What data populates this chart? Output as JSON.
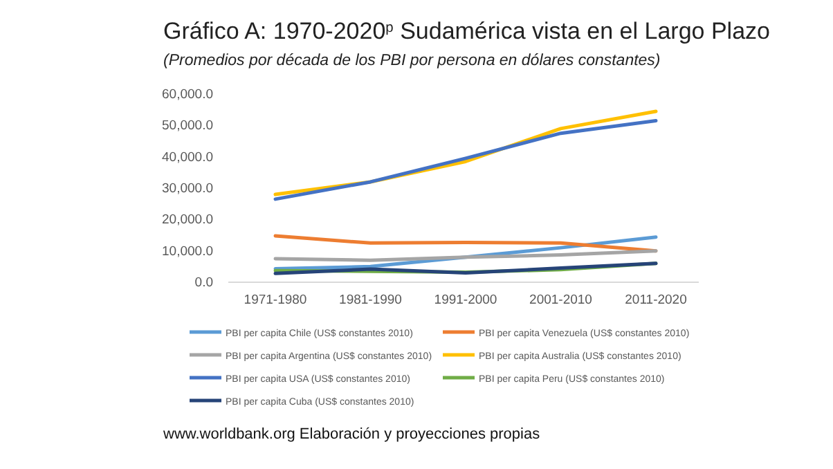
{
  "chart_data": {
    "type": "line",
    "title": "Gráfico A: 1970-2020$^{p}$ Sudamérica vista en el Largo Plazo",
    "subtitle": "(Promedios por década de los PBI por persona en dólares constantes)",
    "categories": [
      "1971-1980",
      "1981-1990",
      "1991-2000",
      "2001-2010",
      "2011-2020"
    ],
    "series": [
      {
        "name": "PBI per capita Chile (US$ constantes 2010)",
        "color": "#5b9bd5",
        "values": [
          4300,
          5000,
          8000,
          11000,
          14400
        ]
      },
      {
        "name": "PBI per capita Venezuela (US$ constantes 2010)",
        "color": "#ed7d31",
        "values": [
          14800,
          12500,
          12700,
          12500,
          10000
        ]
      },
      {
        "name": "PBI per capita Argentina (US$ constantes 2010)",
        "color": "#a5a5a5",
        "values": [
          7500,
          7000,
          8000,
          8700,
          10000
        ]
      },
      {
        "name": "PBI per capita Australia (US$ constantes 2010)",
        "color": "#ffc000",
        "values": [
          28000,
          32000,
          38500,
          49000,
          54500
        ]
      },
      {
        "name": "PBI per capita USA (US$ constantes 2010)",
        "color": "#4472c4",
        "values": [
          26500,
          32000,
          39500,
          47500,
          51500
        ]
      },
      {
        "name": "PBI per capita Peru (US$ constantes 2010)",
        "color": "#70ad47",
        "values": [
          3700,
          3500,
          3200,
          4000,
          6000
        ]
      },
      {
        "name": "PBI per capita Cuba (US$ constantes 2010)",
        "color": "#264478",
        "values": [
          2800,
          4200,
          3000,
          4500,
          6000
        ]
      }
    ],
    "ylim": [
      0,
      60000
    ],
    "yticks": [
      {
        "value": 0,
        "label": "0.0"
      },
      {
        "value": 10000,
        "label": "10,000.0"
      },
      {
        "value": 20000,
        "label": "20,000.0"
      },
      {
        "value": 30000,
        "label": "30,000.0"
      },
      {
        "value": 40000,
        "label": "40,000.0"
      },
      {
        "value": 50000,
        "label": "50,000.0"
      },
      {
        "value": 60000,
        "label": "60,000.0"
      }
    ],
    "grid": false,
    "legend": "bottom",
    "marker": "none",
    "line_style": "solid",
    "annotations": [
      "www.worldbank.org Elaboración y proyecciones propias"
    ]
  }
}
